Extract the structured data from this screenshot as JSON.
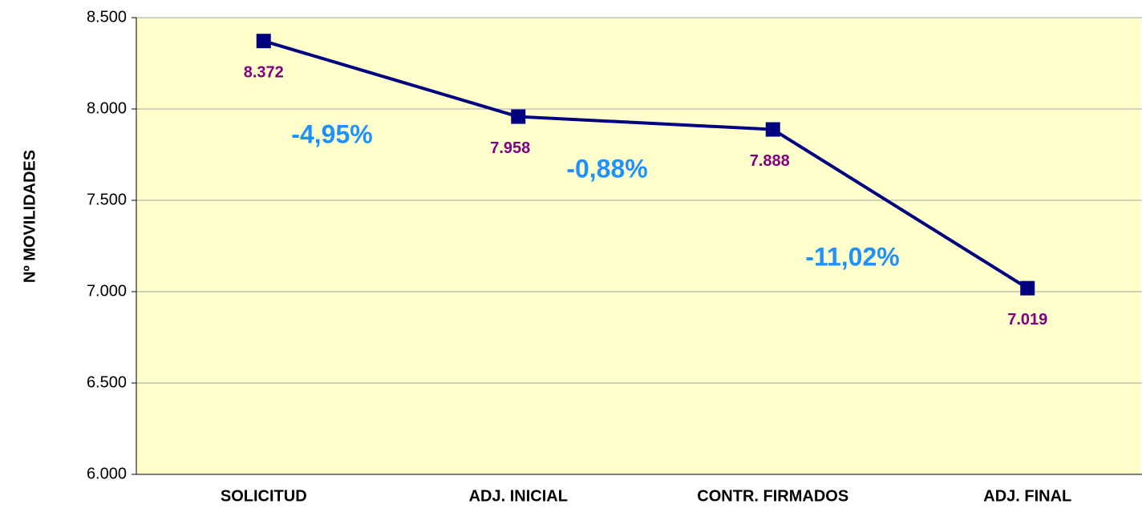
{
  "chart_data": {
    "type": "line",
    "ylabel": "Nº MOVILIDADES",
    "categories": [
      "SOLICITUD",
      "ADJ. INICIAL",
      "CONTR. FIRMADOS",
      "ADJ. FINAL"
    ],
    "values": [
      8372,
      7958,
      7888,
      7019
    ],
    "value_labels": [
      "8.372",
      "7.958",
      "7.888",
      "7.019"
    ],
    "color": "#000080",
    "ylim": [
      6000,
      8500
    ],
    "yticks": [
      {
        "value": 6000,
        "label": "6.000"
      },
      {
        "value": 6500,
        "label": "6.500"
      },
      {
        "value": 7000,
        "label": "7.000"
      },
      {
        "value": 7500,
        "label": "7.500"
      },
      {
        "value": 8000,
        "label": "8.000"
      },
      {
        "value": 8500,
        "label": "8.500"
      }
    ],
    "grid": true,
    "annotations": [
      "-4,95%",
      "-0,88%",
      "-11,02%"
    ]
  }
}
